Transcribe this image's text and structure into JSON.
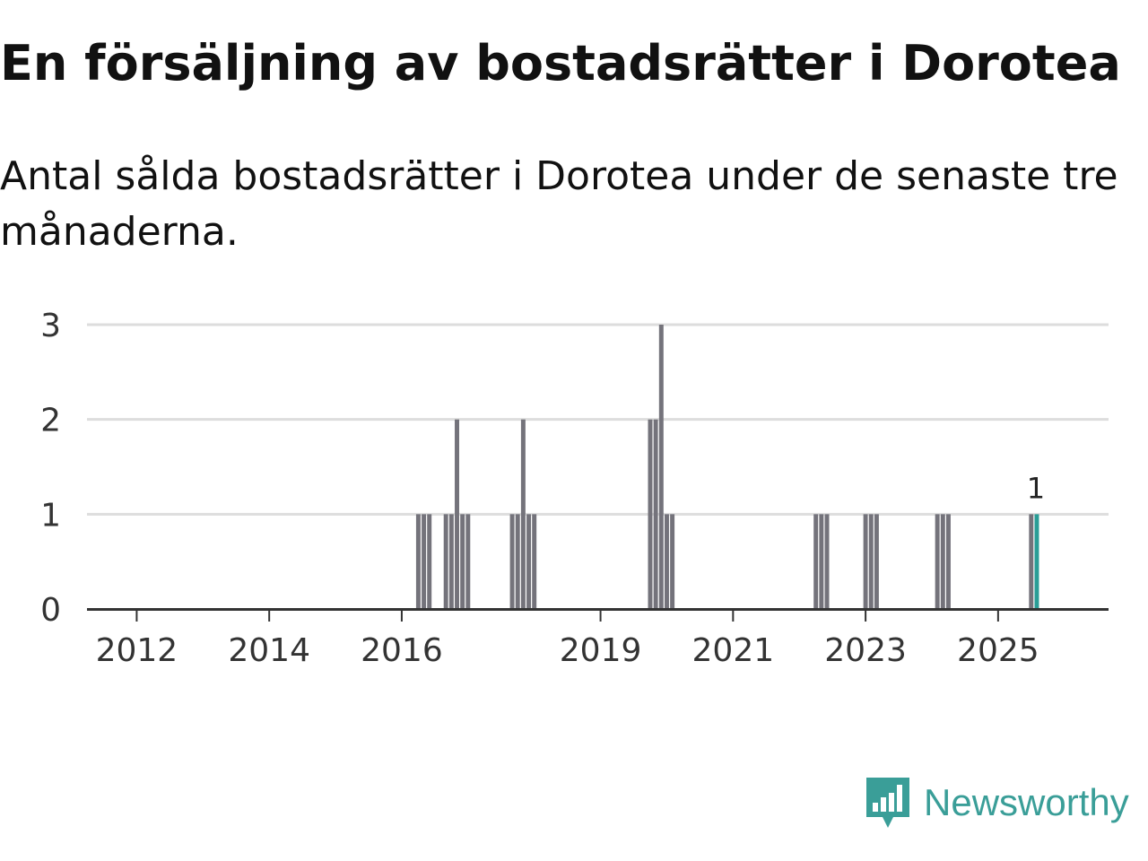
{
  "title": "En försäljning av bostadsrätter i Dorotea",
  "subtitle": "Antal sålda bostadsrätter i Dorotea under de senaste tre månaderna.",
  "brand": {
    "name": "Newsworthy",
    "icon": "newsworthy-logo-icon",
    "color": "#3a9e98"
  },
  "chart_data": {
    "type": "bar",
    "title": "En försäljning av bostadsrätter i Dorotea",
    "subtitle": "Antal sålda bostadsrätter i Dorotea under de senaste tre månaderna.",
    "xlabel": "",
    "ylabel": "",
    "ylim": [
      0,
      3
    ],
    "yticks": [
      "0",
      "1",
      "2",
      "3"
    ],
    "xlim": [
      "2011-04",
      "2026-09"
    ],
    "xticks": [
      {
        "date": "2012-01",
        "label": "2012"
      },
      {
        "date": "2014-01",
        "label": "2014"
      },
      {
        "date": "2016-01",
        "label": "2016"
      },
      {
        "date": "2019-01",
        "label": "2019"
      },
      {
        "date": "2021-01",
        "label": "2021"
      },
      {
        "date": "2023-01",
        "label": "2023"
      },
      {
        "date": "2025-01",
        "label": "2025"
      }
    ],
    "grid": true,
    "legend": "none",
    "bar_color": "#74737b",
    "highlight_color": "#2a9d96",
    "bars": [
      {
        "x": "2016-04",
        "value": 1
      },
      {
        "x": "2016-05",
        "value": 1
      },
      {
        "x": "2016-06",
        "value": 1
      },
      {
        "x": "2016-09",
        "value": 1
      },
      {
        "x": "2016-10",
        "value": 1
      },
      {
        "x": "2016-11",
        "value": 2
      },
      {
        "x": "2016-12",
        "value": 1
      },
      {
        "x": "2017-01",
        "value": 1
      },
      {
        "x": "2017-09",
        "value": 1
      },
      {
        "x": "2017-10",
        "value": 1
      },
      {
        "x": "2017-11",
        "value": 2
      },
      {
        "x": "2017-12",
        "value": 1
      },
      {
        "x": "2018-01",
        "value": 1
      },
      {
        "x": "2019-10",
        "value": 2
      },
      {
        "x": "2019-11",
        "value": 2
      },
      {
        "x": "2019-12",
        "value": 3
      },
      {
        "x": "2020-01",
        "value": 1
      },
      {
        "x": "2020-02",
        "value": 1
      },
      {
        "x": "2022-04",
        "value": 1
      },
      {
        "x": "2022-05",
        "value": 1
      },
      {
        "x": "2022-06",
        "value": 1
      },
      {
        "x": "2023-01",
        "value": 1
      },
      {
        "x": "2023-02",
        "value": 1
      },
      {
        "x": "2023-03",
        "value": 1
      },
      {
        "x": "2024-02",
        "value": 1
      },
      {
        "x": "2024-03",
        "value": 1
      },
      {
        "x": "2024-04",
        "value": 1
      },
      {
        "x": "2025-07",
        "value": 1
      },
      {
        "x": "2025-08",
        "value": 1,
        "highlight": true,
        "label": "1"
      }
    ]
  }
}
